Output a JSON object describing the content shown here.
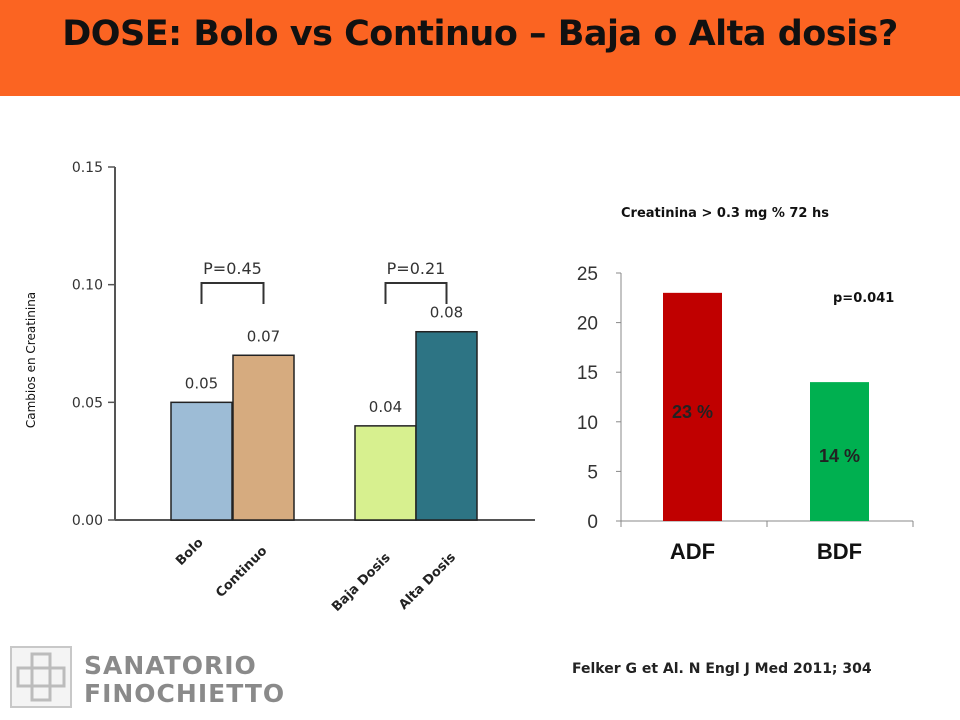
{
  "slide": {
    "title": "DOSE: Bolo vs Continuo – Baja o Alta dosis?",
    "citation": "Felker G et Al. N Engl J Med 2011; 304",
    "logo": {
      "line1": "SANATORIO",
      "line2": "FINOCHIETTO"
    },
    "banner_color": "#fb6422"
  },
  "chart_data": [
    {
      "type": "bar",
      "ylabel": "Cambios en Creatinina",
      "categories": [
        "Bolo",
        "Continuo",
        "Baja Dosis",
        "Alta Dosis"
      ],
      "values": [
        0.05,
        0.07,
        0.04,
        0.08
      ],
      "data_labels": [
        "0.05",
        "0.07",
        "0.04",
        "0.08"
      ],
      "colors": [
        "#9dbcd6",
        "#d6ab7f",
        "#d7f08f",
        "#2d7484"
      ],
      "ylim": [
        0,
        0.15
      ],
      "yticks": [
        "0.00",
        "0.05",
        "0.10",
        "0.15"
      ],
      "brackets": [
        {
          "between": [
            "Bolo",
            "Continuo"
          ],
          "label": "P=0.45"
        },
        {
          "between": [
            "Baja Dosis",
            "Alta Dosis"
          ],
          "label": "P=0.21"
        }
      ],
      "grid": false
    },
    {
      "type": "bar",
      "title": "Creatinina > 0.3 mg % 72 hs",
      "categories": [
        "ADF",
        "BDF"
      ],
      "values": [
        23,
        14
      ],
      "data_labels": [
        "23 %",
        "14 %"
      ],
      "colors": [
        "#c00000",
        "#00b050"
      ],
      "ylim": [
        0,
        25
      ],
      "yticks": [
        "0",
        "5",
        "10",
        "15",
        "20",
        "25"
      ],
      "annotation": "p=0.041",
      "grid": false
    }
  ]
}
